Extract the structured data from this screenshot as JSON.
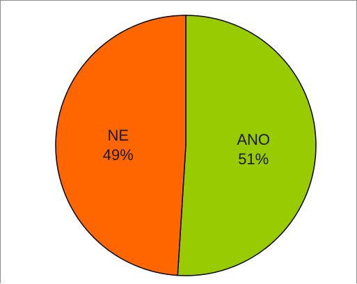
{
  "chart_data": {
    "type": "pie",
    "title": "",
    "slices": [
      {
        "label": "ANO",
        "value": 51,
        "value_label": "51%",
        "color": "#99cc00"
      },
      {
        "label": "NE",
        "value": 49,
        "value_label": "49%",
        "color": "#ff6600"
      }
    ],
    "legend": "none",
    "outline_color": "#000000"
  }
}
